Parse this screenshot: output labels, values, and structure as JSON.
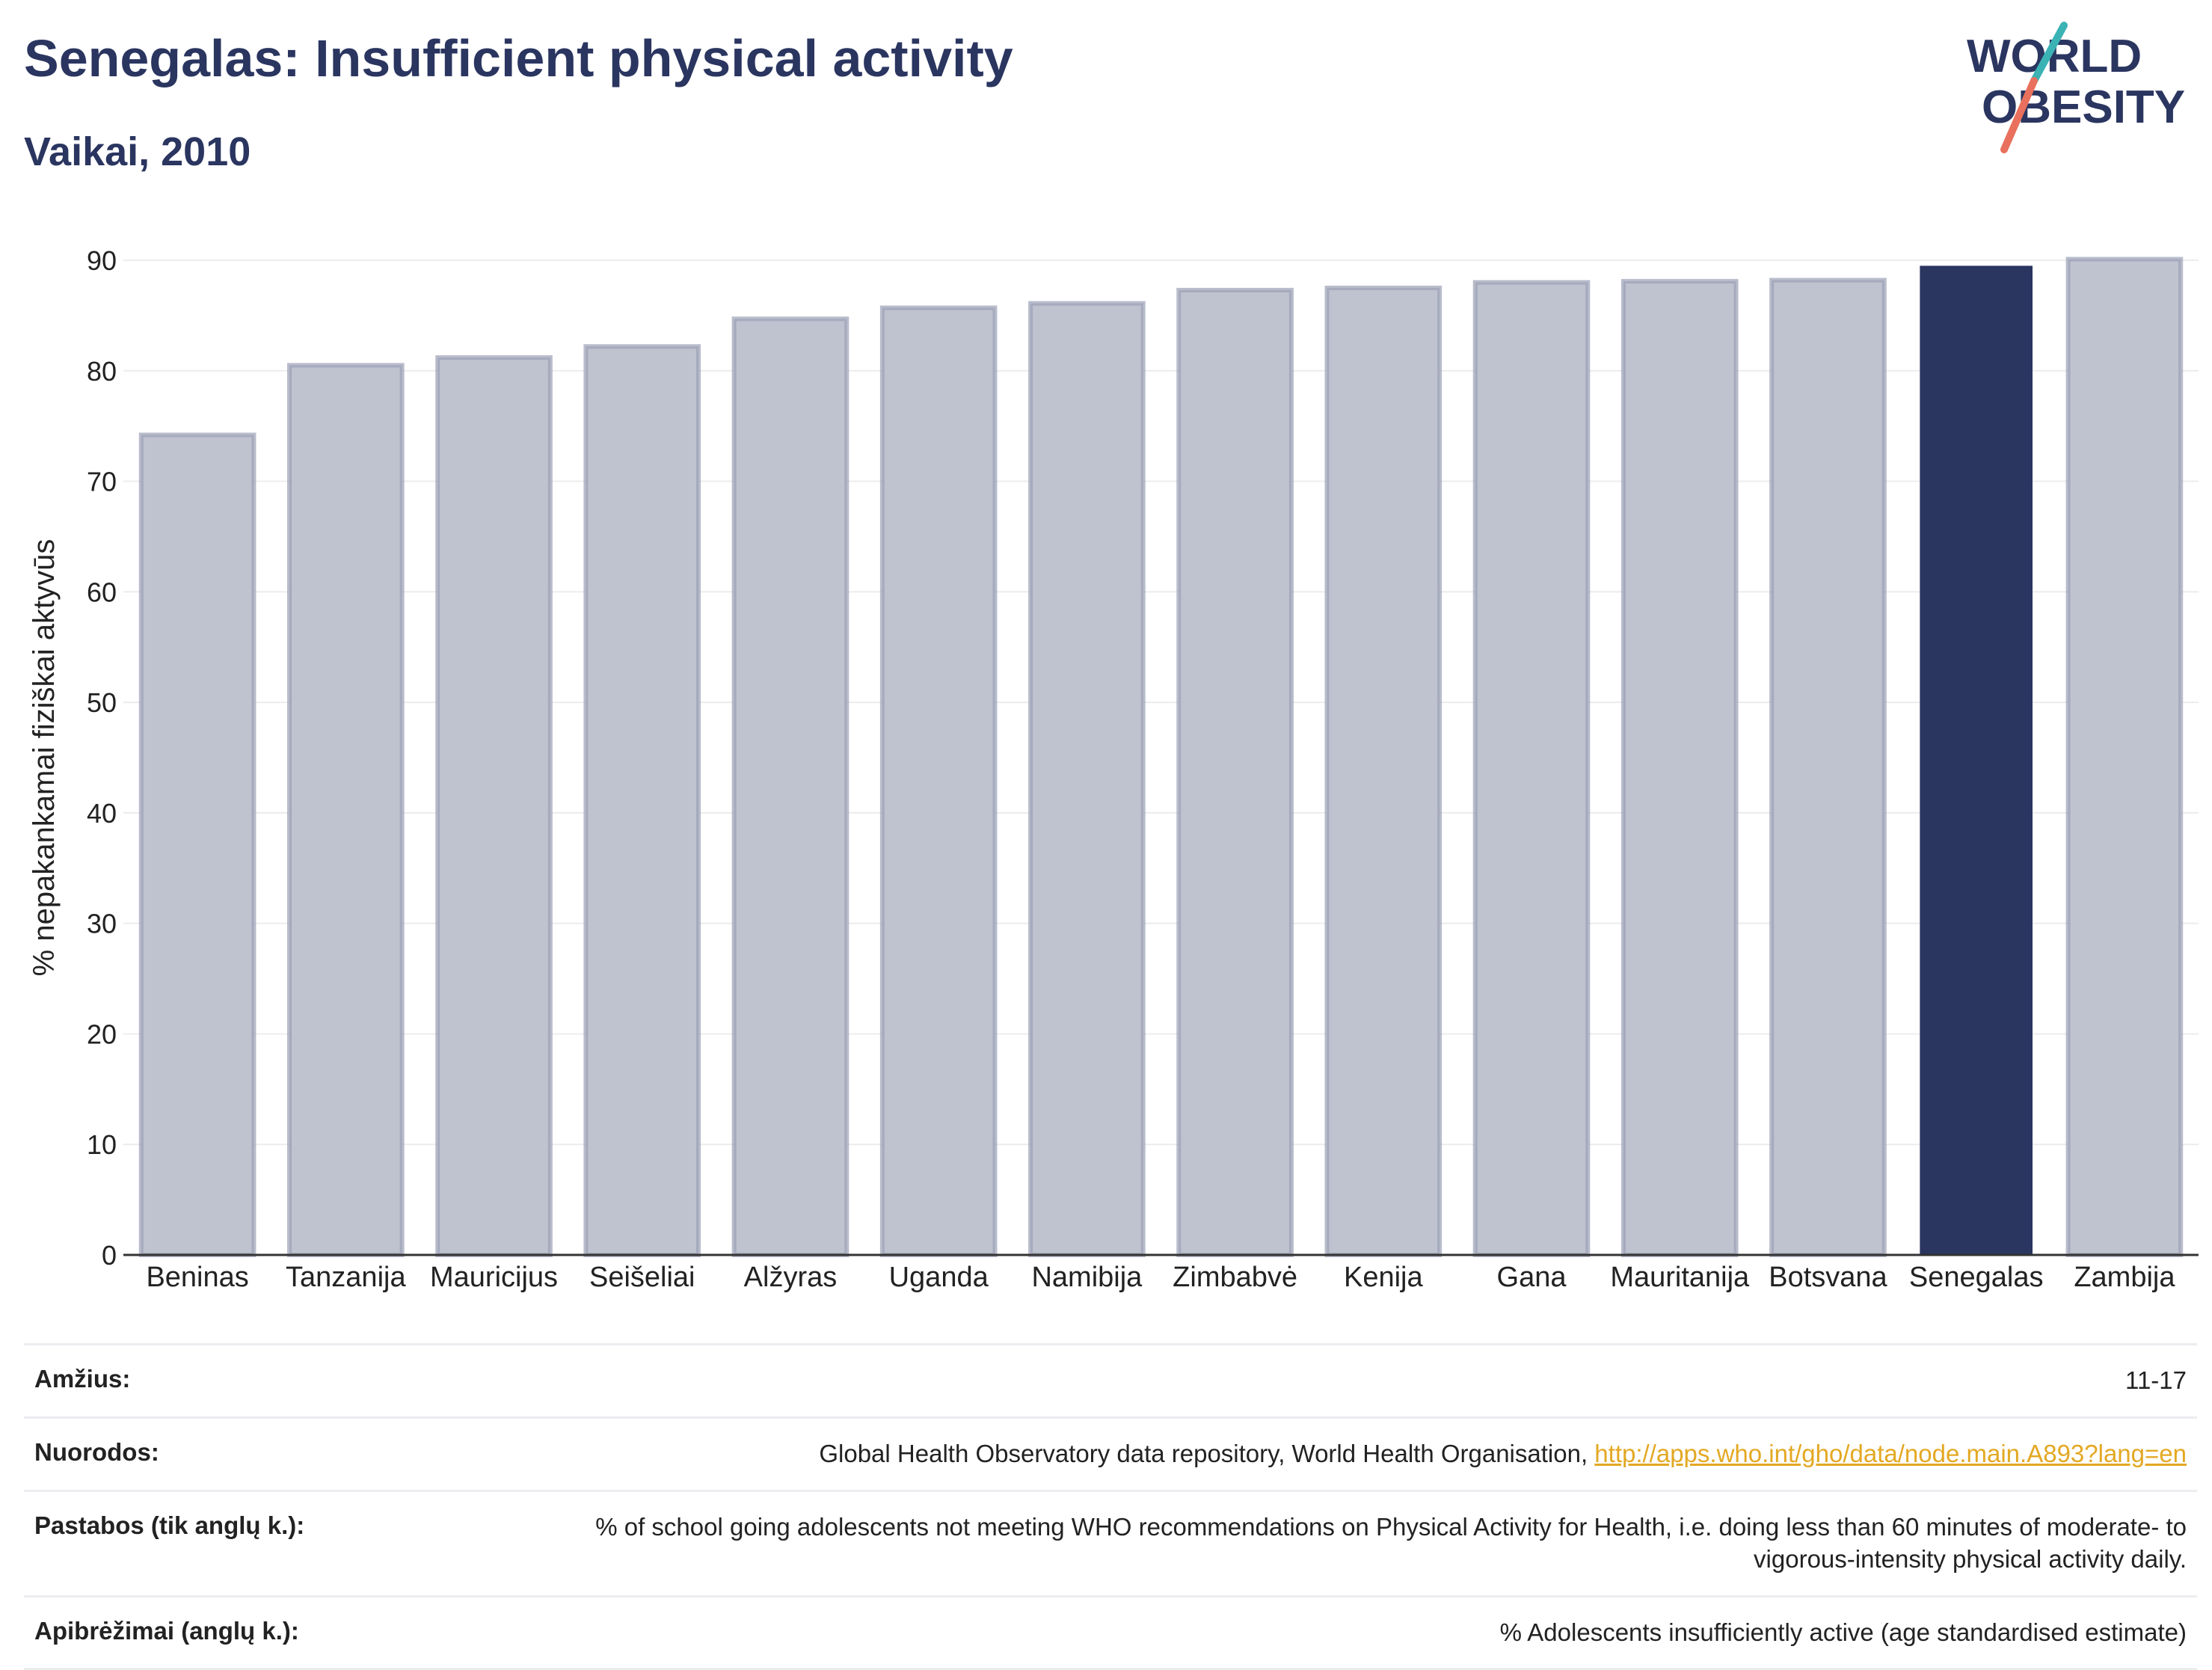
{
  "header": {
    "title": "Senegalas: Insufficient physical activity",
    "subtitle": "Vaikai, 2010"
  },
  "logo": {
    "line1": "WORLD",
    "line2": "OBESITY",
    "colors": {
      "text": "#2a3560",
      "slash_teal": "#3bb3b5",
      "slash_coral": "#e8705c"
    }
  },
  "chart_data": {
    "type": "bar",
    "ylabel": "% nepakankamai fiziškai aktyvūs",
    "xlabel": "",
    "ylim": [
      0,
      90
    ],
    "yticks": [
      0,
      10,
      20,
      30,
      40,
      50,
      60,
      70,
      80,
      90
    ],
    "grid": true,
    "highlight": "Senegalas",
    "categories": [
      "Beninas",
      "Tanzanija",
      "Mauricijus",
      "Seišeliai",
      "Alžyras",
      "Uganda",
      "Namibija",
      "Zimbabvė",
      "Kenija",
      "Gana",
      "Mauritanija",
      "Botsvana",
      "Senegalas",
      "Zambija"
    ],
    "values": [
      74.2,
      80.5,
      81.2,
      82.2,
      84.7,
      85.7,
      86.1,
      87.3,
      87.5,
      88.0,
      88.1,
      88.2,
      89.5,
      90.1
    ],
    "colors": {
      "bar": "#bfc2cf",
      "bar_edge": "#9a9fb5",
      "highlight": "#2a3560",
      "grid": "#ececec",
      "axis": "#333333"
    }
  },
  "info": [
    {
      "key": "Amžius:",
      "value": "11-17"
    },
    {
      "key": "Nuorodos:",
      "value": "Global Health Observatory data repository, World Health Organisation, ",
      "link": "http://apps.who.int/gho/data/node.main.A893?lang=en"
    },
    {
      "key": "Pastabos (tik anglų k.):",
      "value": "% of school going adolescents not meeting WHO recommendations on Physical Activity for Health, i.e. doing less than 60 minutes of moderate- to vigorous-intensity physical activity daily."
    },
    {
      "key": "Apibrėžimai (anglų k.):",
      "value": "% Adolescents insufficiently active (age standardised estimate)"
    }
  ]
}
